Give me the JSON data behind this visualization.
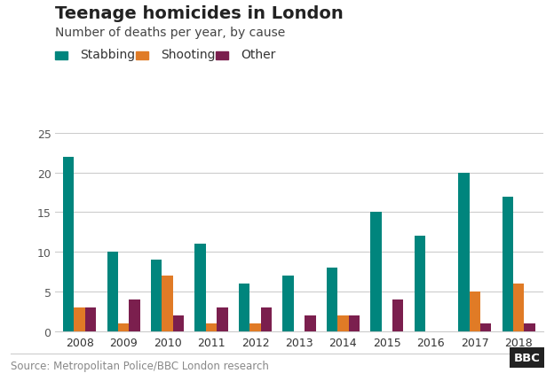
{
  "title": "Teenage homicides in London",
  "subtitle": "Number of deaths per year, by cause",
  "years": [
    2008,
    2009,
    2010,
    2011,
    2012,
    2013,
    2014,
    2015,
    2016,
    2017,
    2018
  ],
  "stabbing": [
    22,
    10,
    9,
    11,
    6,
    7,
    8,
    15,
    12,
    20,
    17
  ],
  "shooting": [
    3,
    1,
    7,
    1,
    1,
    0,
    2,
    0,
    0,
    5,
    6
  ],
  "other": [
    3,
    4,
    2,
    3,
    3,
    2,
    2,
    4,
    0,
    1,
    1
  ],
  "colors": {
    "stabbing": "#00857d",
    "shooting": "#e07b26",
    "other": "#7b1f4e"
  },
  "legend_labels": [
    "Stabbing",
    "Shooting",
    "Other"
  ],
  "ylim": [
    0,
    25
  ],
  "yticks": [
    0,
    5,
    10,
    15,
    20,
    25
  ],
  "source_text": "Source: Metropolitan Police/BBC London research",
  "bbc_text": "BBC",
  "background_color": "#ffffff",
  "title_fontsize": 14,
  "subtitle_fontsize": 10,
  "legend_fontsize": 10,
  "tick_fontsize": 9,
  "source_fontsize": 8.5,
  "bar_width": 0.25
}
